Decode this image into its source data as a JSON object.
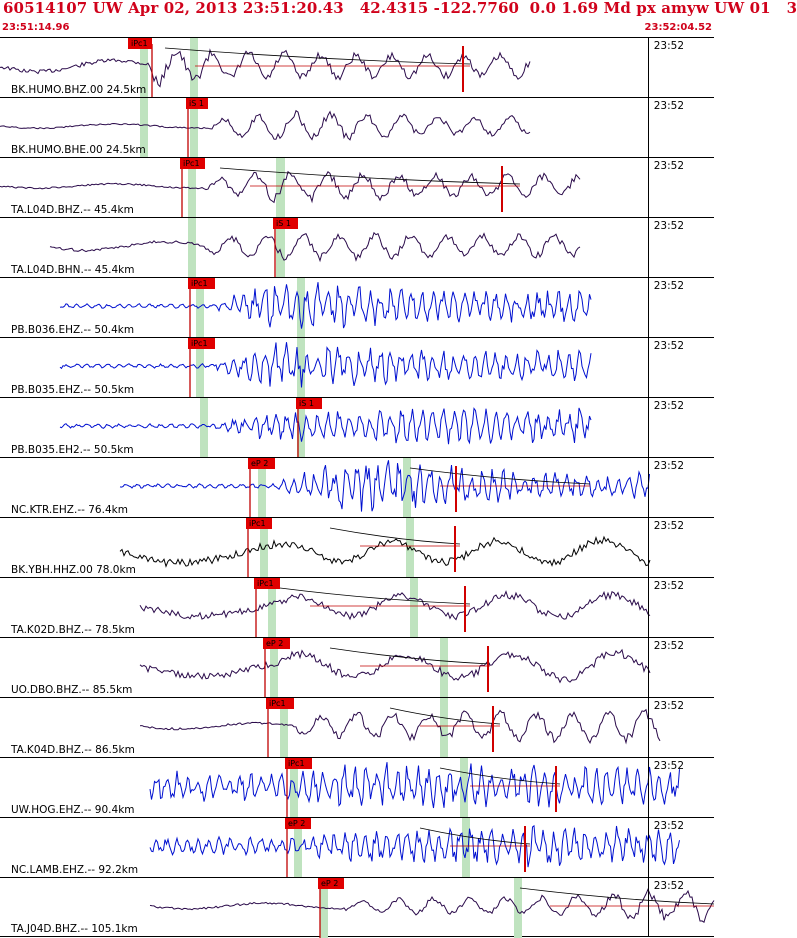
{
  "header": {
    "title": "60514107 UW Apr 02, 2013 23:51:20.43   42.4315 -122.7760  0.0 1.69 Md px amyw UW 01   3",
    "start_time": "23:51:14.96",
    "end_time": "23:52:04.52"
  },
  "colors": {
    "header": "#d0021b",
    "pick": "#e00000",
    "window": "#bfe3bf",
    "trace_dark": "#2a0a4a",
    "trace_blue": "#0010d0",
    "trace_black": "#000000"
  },
  "traces": [
    {
      "label": "BK.HUMO.BHZ.00 24.5km",
      "time": "23:52",
      "pick": "iPc1",
      "color": "dark"
    },
    {
      "label": "BK.HUMO.BHE.00 24.5km",
      "time": "23:52",
      "pick": "iS 1",
      "color": "dark"
    },
    {
      "label": "TA.L04D.BHZ.-- 45.4km",
      "time": "23:52",
      "pick": "iPc1",
      "color": "dark"
    },
    {
      "label": "TA.L04D.BHN.-- 45.4km",
      "time": "23:52",
      "pick": "iS 1",
      "color": "dark"
    },
    {
      "label": "PB.B036.EHZ.-- 50.4km",
      "time": "23:52",
      "pick": "iPc1",
      "color": "blue"
    },
    {
      "label": "PB.B035.EHZ.-- 50.5km",
      "time": "23:52",
      "pick": "iPc1",
      "color": "blue"
    },
    {
      "label": "PB.B035.EH2.-- 50.5km",
      "time": "23:52",
      "pick": "iS 1",
      "color": "blue"
    },
    {
      "label": "NC.KTR.EHZ.-- 76.4km",
      "time": "23:52",
      "pick": "eP 2",
      "color": "blue"
    },
    {
      "label": "BK.YBH.HHZ.00 78.0km",
      "time": "23:52",
      "pick": "iPc1",
      "color": "black"
    },
    {
      "label": "TA.K02D.BHZ.-- 78.5km",
      "time": "23:52",
      "pick": "iPc1",
      "color": "dark"
    },
    {
      "label": "UO.DBO.BHZ.-- 85.5km",
      "time": "23:52",
      "pick": "eP 2",
      "color": "dark"
    },
    {
      "label": "TA.K04D.BHZ.-- 86.5km",
      "time": "23:52",
      "pick": "iPc1",
      "color": "dark"
    },
    {
      "label": "UW.HOG.EHZ.-- 90.4km",
      "time": "23:52",
      "pick": "iPc1",
      "color": "blue"
    },
    {
      "label": "NC.LAMB.EHZ.-- 92.2km",
      "time": "23:52",
      "pick": "eP 2",
      "color": "blue"
    },
    {
      "label": "TA.J04D.BHZ.-- 105.1km",
      "time": "23:52",
      "pick": "eP 2",
      "color": "dark"
    }
  ]
}
